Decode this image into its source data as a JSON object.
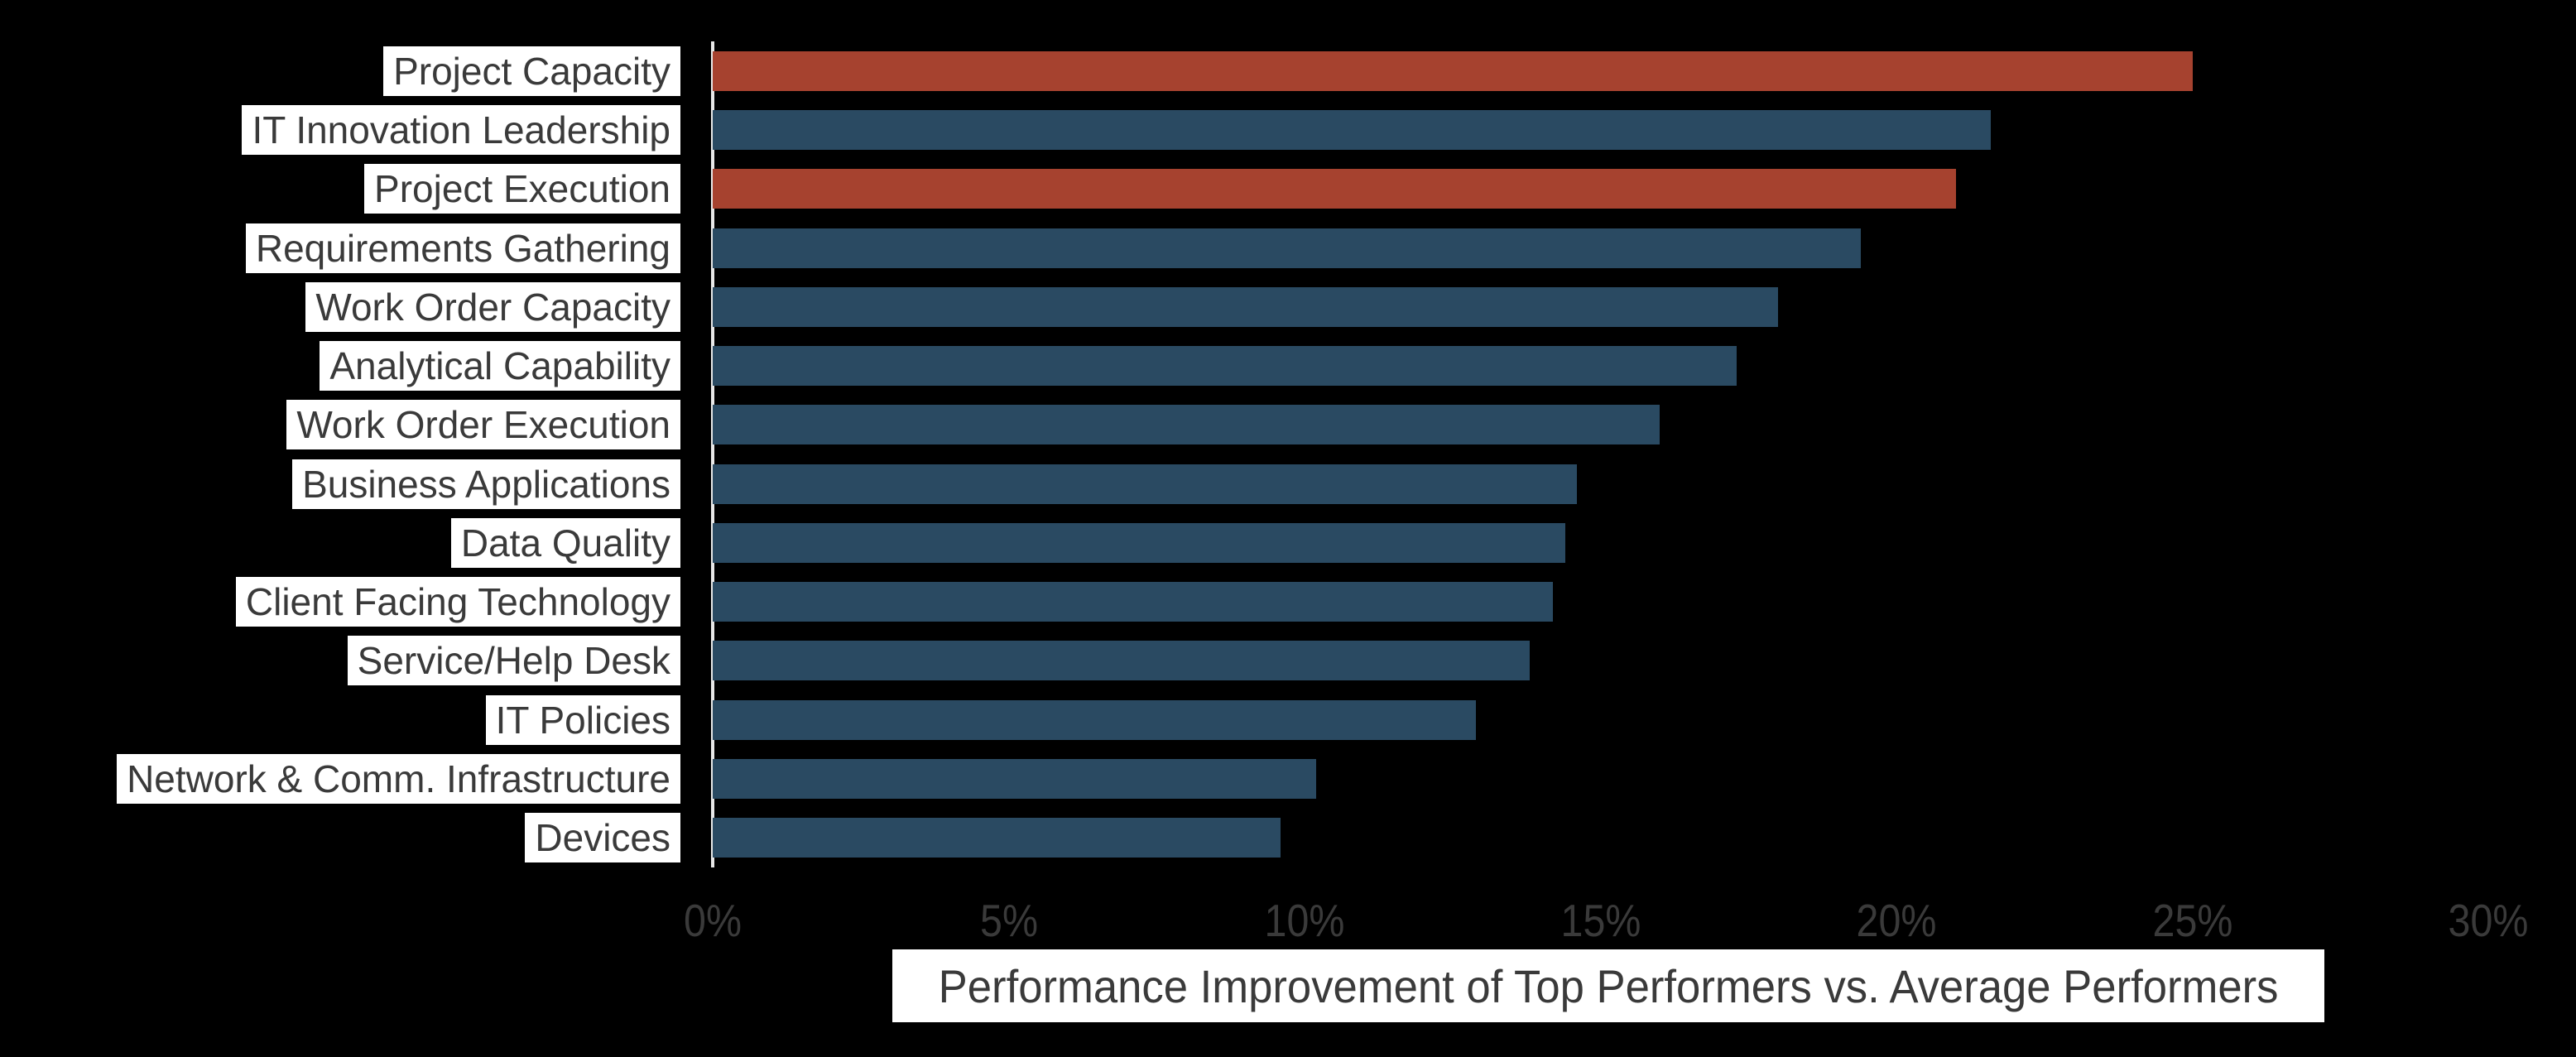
{
  "chart_data": {
    "type": "bar",
    "orientation": "horizontal",
    "title": "",
    "xlabel": "Performance Improvement of Top Performers vs. Average Performers",
    "ylabel": "",
    "categories": [
      "Project Capacity",
      "IT Innovation Leadership",
      "Project Execution",
      "Requirements Gathering",
      "Work Order Capacity",
      "Analytical Capability",
      "Work Order Execution",
      "Business Applications",
      "Data Quality",
      "Client Facing Technology",
      "Service/Help Desk",
      "IT Policies",
      "Network & Comm. Infrastructure",
      "Devices"
    ],
    "values": [
      25.0,
      21.6,
      21.0,
      19.4,
      18.0,
      17.3,
      16.0,
      14.6,
      14.4,
      14.2,
      13.8,
      12.9,
      10.2,
      9.6
    ],
    "value_unit": "%",
    "highlighted": [
      true,
      false,
      true,
      false,
      false,
      false,
      false,
      false,
      false,
      false,
      false,
      false,
      false,
      false
    ],
    "highlighted_categories": [
      "Project Capacity",
      "Project Execution"
    ],
    "xlim": [
      0,
      30
    ],
    "xticks": [
      "0%",
      "5%",
      "10%",
      "15%",
      "20%",
      "25%",
      "30%"
    ],
    "grid": false,
    "legend": null,
    "colors": {
      "bar_default": "#2A4A62",
      "bar_highlight": "#A6422F",
      "background": "#000000",
      "axis_line": "#E8E8E8",
      "tick_text": "#3A3A3A",
      "category_text": "#3A3A3A",
      "label_chip_background": "#FFFFFF",
      "axis_title_text": "#3A3A3A",
      "axis_title_background": "#FFFFFF"
    }
  }
}
